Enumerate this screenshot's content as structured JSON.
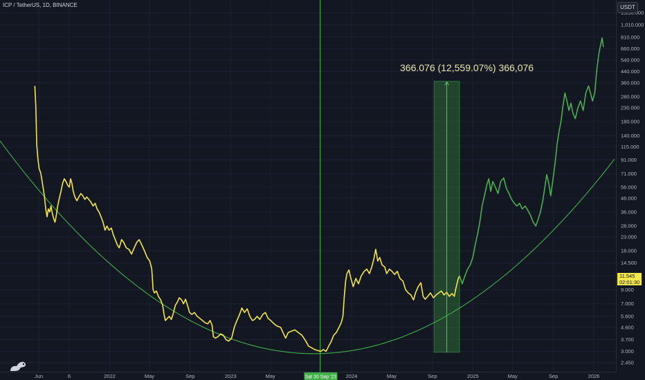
{
  "header": {
    "symbol_title": "ICP / TetherUS, 1D, BINANCE",
    "currency_button": "USDT"
  },
  "price_tag": {
    "price": "11.545",
    "countdown": "02:01:30"
  },
  "measurement": {
    "label": "366.076 (12,559.07%) 366,076"
  },
  "crosshair_date": "Sat 30 Sep '23",
  "colors": {
    "background": "#131722",
    "price_line": "#f5e64a",
    "projection_line": "#4caf50",
    "curve": "#3fb048",
    "measure_box": "#2e6b35"
  },
  "chart_data": {
    "type": "line",
    "symbol": "ICP / TetherUS",
    "interval": "1D",
    "exchange": "BINANCE",
    "scale": "log",
    "y_ticks": [
      "1,250.000",
      "1,010.000",
      "810.000",
      "660.000",
      "540.000",
      "440.000",
      "360.000",
      "280.000",
      "230.000",
      "180.000",
      "140.000",
      "115.000",
      "91.000",
      "71.000",
      "56.000",
      "46.000",
      "36.000",
      "28.000",
      "23.000",
      "18.000",
      "14.500",
      "11.545",
      "9.000",
      "7.000",
      "5.600",
      "4.600",
      "3.700",
      "3.000",
      "2.450"
    ],
    "x_ticks": [
      "Jun",
      "6",
      "2022",
      "May",
      "Sep",
      "2023",
      "May",
      "Sat 30 Sep '23",
      "2024",
      "May",
      "Sep",
      "2025",
      "May",
      "Sep",
      "2026"
    ],
    "x_ticks_dates": [
      "2021-06-01",
      "2021-09-01",
      "2022-01-01",
      "2022-05-01",
      "2022-09-01",
      "2023-01-01",
      "2023-05-01",
      "2023-09-30",
      "2024-01-01",
      "2024-05-01",
      "2024-09-01",
      "2025-01-01",
      "2025-05-01",
      "2025-09-01",
      "2026-01-01"
    ],
    "ylim": [
      2.45,
      1250
    ],
    "series": [
      {
        "values": [
          [
            "2021-05-20",
            340
          ],
          [
            "2021-05-23",
            240
          ],
          [
            "2021-05-26",
            120
          ],
          [
            "2021-05-29",
            95
          ],
          [
            "2021-06-02",
            78
          ],
          [
            "2021-06-07",
            72
          ],
          [
            "2021-06-12",
            60
          ],
          [
            "2021-06-18",
            48
          ],
          [
            "2021-06-22",
            38
          ],
          [
            "2021-06-26",
            33
          ],
          [
            "2021-06-30",
            38
          ],
          [
            "2021-07-04",
            36
          ],
          [
            "2021-07-08",
            40
          ],
          [
            "2021-07-12",
            35
          ],
          [
            "2021-07-16",
            32
          ],
          [
            "2021-07-20",
            30
          ],
          [
            "2021-07-24",
            34
          ],
          [
            "2021-07-28",
            40
          ],
          [
            "2021-08-02",
            46
          ],
          [
            "2021-08-07",
            52
          ],
          [
            "2021-08-12",
            60
          ],
          [
            "2021-08-17",
            65
          ],
          [
            "2021-08-22",
            62
          ],
          [
            "2021-08-27",
            58
          ],
          [
            "2021-09-01",
            56
          ],
          [
            "2021-09-05",
            65
          ],
          [
            "2021-09-09",
            60
          ],
          [
            "2021-09-13",
            52
          ],
          [
            "2021-09-18",
            47
          ],
          [
            "2021-09-24",
            44
          ],
          [
            "2021-09-30",
            47
          ],
          [
            "2021-10-06",
            50
          ],
          [
            "2021-10-12",
            48
          ],
          [
            "2021-10-18",
            45
          ],
          [
            "2021-10-24",
            47
          ],
          [
            "2021-10-30",
            45
          ],
          [
            "2021-11-05",
            43
          ],
          [
            "2021-11-12",
            40
          ],
          [
            "2021-11-18",
            42
          ],
          [
            "2021-11-24",
            38
          ],
          [
            "2021-11-30",
            36
          ],
          [
            "2021-12-06",
            33
          ],
          [
            "2021-12-12",
            30
          ],
          [
            "2021-12-18",
            26
          ],
          [
            "2021-12-24",
            28
          ],
          [
            "2021-12-30",
            26
          ],
          [
            "2022-01-06",
            27
          ],
          [
            "2022-01-12",
            24
          ],
          [
            "2022-01-18",
            22
          ],
          [
            "2022-01-24",
            20
          ],
          [
            "2022-01-30",
            19
          ],
          [
            "2022-02-06",
            22
          ],
          [
            "2022-02-12",
            21
          ],
          [
            "2022-02-20",
            19
          ],
          [
            "2022-02-28",
            18.5
          ],
          [
            "2022-03-08",
            17
          ],
          [
            "2022-03-16",
            19
          ],
          [
            "2022-03-24",
            21
          ],
          [
            "2022-03-31",
            22
          ],
          [
            "2022-04-08",
            20
          ],
          [
            "2022-04-16",
            18
          ],
          [
            "2022-04-24",
            16
          ],
          [
            "2022-05-02",
            15
          ],
          [
            "2022-05-08",
            13
          ],
          [
            "2022-05-12",
            9
          ],
          [
            "2022-05-16",
            8.5
          ],
          [
            "2022-05-22",
            8.8
          ],
          [
            "2022-05-28",
            8
          ],
          [
            "2022-06-04",
            7.5
          ],
          [
            "2022-06-10",
            6.8
          ],
          [
            "2022-06-14",
            5.8
          ],
          [
            "2022-06-18",
            5.2
          ],
          [
            "2022-06-24",
            5.4
          ],
          [
            "2022-06-30",
            5.6
          ],
          [
            "2022-07-06",
            5.3
          ],
          [
            "2022-07-12",
            5.9
          ],
          [
            "2022-07-18",
            6.8
          ],
          [
            "2022-07-24",
            7.2
          ],
          [
            "2022-07-30",
            7.8
          ],
          [
            "2022-08-06",
            7.5
          ],
          [
            "2022-08-12",
            7.0
          ],
          [
            "2022-08-18",
            7.6
          ],
          [
            "2022-08-24",
            6.8
          ],
          [
            "2022-08-30",
            6.0
          ],
          [
            "2022-09-06",
            5.8
          ],
          [
            "2022-09-14",
            6.0
          ],
          [
            "2022-09-22",
            5.6
          ],
          [
            "2022-09-30",
            5.4
          ],
          [
            "2022-10-08",
            5.2
          ],
          [
            "2022-10-16",
            5.0
          ],
          [
            "2022-10-24",
            4.9
          ],
          [
            "2022-10-31",
            5.2
          ],
          [
            "2022-11-06",
            4.8
          ],
          [
            "2022-11-10",
            3.9
          ],
          [
            "2022-11-16",
            3.8
          ],
          [
            "2022-11-24",
            3.9
          ],
          [
            "2022-12-02",
            4.1
          ],
          [
            "2022-12-10",
            4.0
          ],
          [
            "2022-12-18",
            3.7
          ],
          [
            "2022-12-26",
            3.6
          ],
          [
            "2023-01-04",
            3.8
          ],
          [
            "2023-01-12",
            4.6
          ],
          [
            "2023-01-20",
            5.2
          ],
          [
            "2023-01-28",
            5.8
          ],
          [
            "2023-02-04",
            6.5
          ],
          [
            "2023-02-12",
            6.0
          ],
          [
            "2023-02-20",
            6.4
          ],
          [
            "2023-02-28",
            5.6
          ],
          [
            "2023-03-08",
            5.2
          ],
          [
            "2023-03-14",
            5.3
          ],
          [
            "2023-03-22",
            5.6
          ],
          [
            "2023-03-30",
            5.3
          ],
          [
            "2023-04-08",
            5.8
          ],
          [
            "2023-04-16",
            6.0
          ],
          [
            "2023-04-24",
            5.4
          ],
          [
            "2023-05-02",
            5.2
          ],
          [
            "2023-05-12",
            4.9
          ],
          [
            "2023-05-22",
            4.7
          ],
          [
            "2023-06-01",
            4.6
          ],
          [
            "2023-06-10",
            4.1
          ],
          [
            "2023-06-16",
            3.8
          ],
          [
            "2023-06-24",
            4.2
          ],
          [
            "2023-07-04",
            4.3
          ],
          [
            "2023-07-14",
            4.4
          ],
          [
            "2023-07-24",
            4.2
          ],
          [
            "2023-08-04",
            4.0
          ],
          [
            "2023-08-16",
            3.6
          ],
          [
            "2023-08-24",
            3.3
          ],
          [
            "2023-09-02",
            3.2
          ],
          [
            "2023-09-12",
            3.1
          ],
          [
            "2023-09-20",
            3.05
          ],
          [
            "2023-09-30",
            3.0
          ],
          [
            "2023-10-08",
            3.1
          ],
          [
            "2023-10-16",
            3.0
          ],
          [
            "2023-10-24",
            3.3
          ],
          [
            "2023-11-01",
            3.6
          ],
          [
            "2023-11-08",
            4.0
          ],
          [
            "2023-11-16",
            4.2
          ],
          [
            "2023-11-24",
            4.6
          ],
          [
            "2023-12-01",
            5.0
          ],
          [
            "2023-12-06",
            5.6
          ],
          [
            "2023-12-10",
            8.0
          ],
          [
            "2023-12-14",
            10.5
          ],
          [
            "2023-12-18",
            12.0
          ],
          [
            "2023-12-24",
            12.8
          ],
          [
            "2023-12-30",
            11.0
          ],
          [
            "2024-01-06",
            9.5
          ],
          [
            "2024-01-14",
            11.0
          ],
          [
            "2024-01-22",
            10.0
          ],
          [
            "2024-01-30",
            11.5
          ],
          [
            "2024-02-08",
            12.5
          ],
          [
            "2024-02-16",
            13.0
          ],
          [
            "2024-02-24",
            12.0
          ],
          [
            "2024-03-02",
            13.5
          ],
          [
            "2024-03-08",
            15.5
          ],
          [
            "2024-03-14",
            18.5
          ],
          [
            "2024-03-20",
            15.0
          ],
          [
            "2024-03-26",
            16.0
          ],
          [
            "2024-04-02",
            14.0
          ],
          [
            "2024-04-10",
            13.5
          ],
          [
            "2024-04-16",
            12.0
          ],
          [
            "2024-04-24",
            13.0
          ],
          [
            "2024-05-02",
            12.5
          ],
          [
            "2024-05-10",
            11.8
          ],
          [
            "2024-05-18",
            12.5
          ],
          [
            "2024-05-26",
            11.0
          ],
          [
            "2024-06-04",
            10.5
          ],
          [
            "2024-06-12",
            9.0
          ],
          [
            "2024-06-20",
            8.5
          ],
          [
            "2024-06-28",
            8.2
          ],
          [
            "2024-07-06",
            7.5
          ],
          [
            "2024-07-12",
            8.5
          ],
          [
            "2024-07-20",
            9.5
          ],
          [
            "2024-07-28",
            10.2
          ],
          [
            "2024-08-04",
            8.0
          ],
          [
            "2024-08-10",
            7.6
          ],
          [
            "2024-08-18",
            8.0
          ],
          [
            "2024-08-26",
            8.5
          ],
          [
            "2024-09-04",
            7.8
          ],
          [
            "2024-09-12",
            8.2
          ],
          [
            "2024-09-20",
            8.5
          ],
          [
            "2024-09-28",
            8.8
          ],
          [
            "2024-10-06",
            8.2
          ],
          [
            "2024-10-14",
            8.6
          ],
          [
            "2024-10-22",
            8.0
          ],
          [
            "2024-10-30",
            8.4
          ],
          [
            "2024-11-06",
            8.0
          ],
          [
            "2024-11-10",
            9.0
          ],
          [
            "2024-11-14",
            10.0
          ],
          [
            "2024-11-18",
            11.0
          ],
          [
            "2024-11-22",
            11.545
          ]
        ]
      },
      {
        "values": [
          [
            "2024-11-22",
            11.545
          ],
          [
            "2024-11-30",
            10.0
          ],
          [
            "2024-12-08",
            11.5
          ],
          [
            "2024-12-16",
            13.0
          ],
          [
            "2024-12-24",
            14.0
          ],
          [
            "2025-01-01",
            16.0
          ],
          [
            "2025-01-08",
            20.0
          ],
          [
            "2025-01-15",
            24.0
          ],
          [
            "2025-01-22",
            30.0
          ],
          [
            "2025-01-29",
            40.0
          ],
          [
            "2025-02-05",
            48.0
          ],
          [
            "2025-02-12",
            58.0
          ],
          [
            "2025-02-18",
            65.0
          ],
          [
            "2025-02-24",
            52.0
          ],
          [
            "2025-03-02",
            62.0
          ],
          [
            "2025-03-10",
            56.0
          ],
          [
            "2025-03-18",
            50.0
          ],
          [
            "2025-03-26",
            62.0
          ],
          [
            "2025-04-04",
            66.0
          ],
          [
            "2025-04-12",
            55.0
          ],
          [
            "2025-04-20",
            50.0
          ],
          [
            "2025-04-28",
            45.0
          ],
          [
            "2025-05-06",
            42.0
          ],
          [
            "2025-05-14",
            40.0
          ],
          [
            "2025-05-22",
            42.0
          ],
          [
            "2025-05-30",
            38.0
          ],
          [
            "2025-06-08",
            40.0
          ],
          [
            "2025-06-16",
            37.0
          ],
          [
            "2025-06-24",
            34.0
          ],
          [
            "2025-07-02",
            30.0
          ],
          [
            "2025-07-10",
            28.0
          ],
          [
            "2025-07-16",
            31.0
          ],
          [
            "2025-07-24",
            36.0
          ],
          [
            "2025-07-31",
            44.0
          ],
          [
            "2025-08-06",
            55.0
          ],
          [
            "2025-08-12",
            70.0
          ],
          [
            "2025-08-18",
            60.0
          ],
          [
            "2025-08-24",
            48.0
          ],
          [
            "2025-08-30",
            62.0
          ],
          [
            "2025-09-06",
            85.0
          ],
          [
            "2025-09-12",
            120.0
          ],
          [
            "2025-09-18",
            150.0
          ],
          [
            "2025-09-24",
            180.0
          ],
          [
            "2025-09-30",
            240.0
          ],
          [
            "2025-10-06",
            300.0
          ],
          [
            "2025-10-12",
            260.0
          ],
          [
            "2025-10-18",
            220.0
          ],
          [
            "2025-10-24",
            250.0
          ],
          [
            "2025-10-30",
            210.0
          ],
          [
            "2025-11-06",
            190.0
          ],
          [
            "2025-11-14",
            230.0
          ],
          [
            "2025-11-22",
            260.0
          ],
          [
            "2025-11-30",
            220.0
          ],
          [
            "2025-12-08",
            300.0
          ],
          [
            "2025-12-16",
            340.0
          ],
          [
            "2025-12-22",
            300.0
          ],
          [
            "2025-12-28",
            260.0
          ],
          [
            "2026-01-04",
            300.0
          ],
          [
            "2026-01-10",
            450.0
          ],
          [
            "2026-01-16",
            600.0
          ],
          [
            "2026-01-22",
            720.0
          ],
          [
            "2026-01-26",
            800.0
          ],
          [
            "2026-01-30",
            680.0
          ]
        ]
      }
    ],
    "curve": {
      "vertex_date": "2023-09-10",
      "vertex_price": 2.88
    },
    "measure": {
      "from_date": "2024-09-06",
      "to_date": "2024-11-22",
      "low": 2.95,
      "high": 370.0,
      "text": "366.076 (12,559.07%) 366,076"
    }
  }
}
